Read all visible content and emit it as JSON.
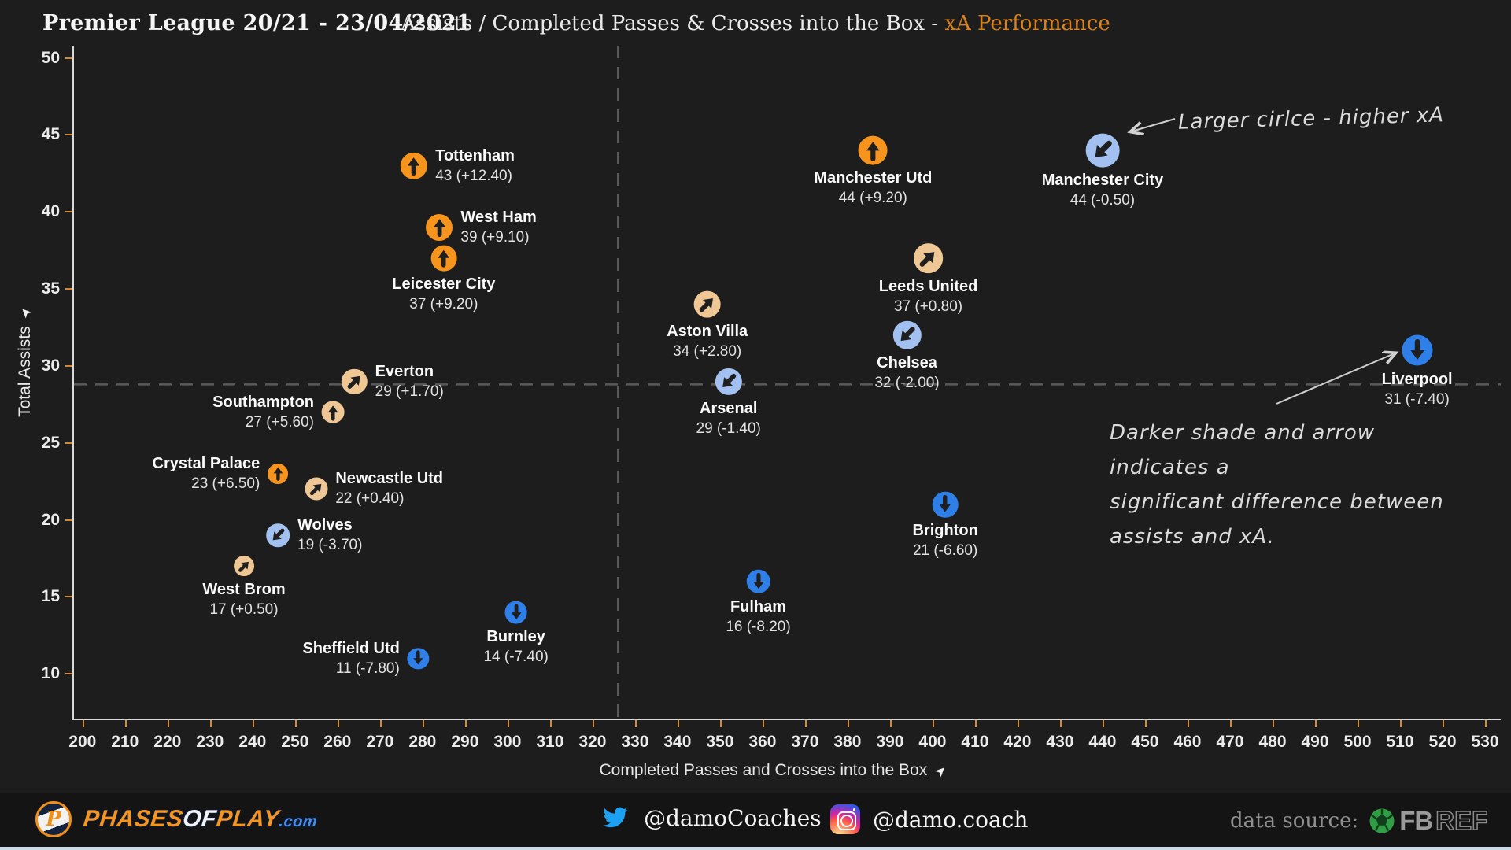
{
  "header": {
    "left_title": "Premier League 20/21 - 23/04/2021",
    "title_main": "Assists / Completed Passes & Crosses into the Box - ",
    "title_accent": "xA Performance"
  },
  "icons": {
    "dart": "➤"
  },
  "chart_data": {
    "type": "scatter",
    "title": "Assists / Completed Passes & Crosses into the Box - xA Performance",
    "xlabel": "Completed Passes and Crosses into the Box",
    "ylabel": "Total Assists",
    "xlim": [
      198,
      533.7
    ],
    "ylim": [
      7.1,
      50.8
    ],
    "x_ticks": [
      200,
      210,
      220,
      230,
      240,
      250,
      260,
      270,
      280,
      290,
      300,
      310,
      320,
      330,
      340,
      350,
      360,
      370,
      380,
      390,
      400,
      410,
      420,
      430,
      440,
      450,
      460,
      470,
      480,
      490,
      500,
      510,
      520,
      530
    ],
    "y_ticks": [
      10,
      15,
      20,
      25,
      30,
      35,
      40,
      45,
      50
    ],
    "grid": false,
    "average_lines": {
      "x_value": 326,
      "y_value": 28.8
    },
    "encoding_notes": {
      "size": "circle size proportional to xA",
      "color_up": "orange = assists above xA",
      "color_down": "blue = assists below xA",
      "strong_shade": "darker shade + straight arrow = significant difference"
    },
    "colors": {
      "orange_strong": "#f7941d",
      "orange_pale": "#efc795",
      "blue_strong": "#2e7fe8",
      "blue_pale": "#a2c1f0",
      "arrow": "#1f1f1f",
      "tick": "#d78b2f",
      "dashed": "#5a5a5a"
    },
    "teams": [
      {
        "name": "Tottenham",
        "passes": 278,
        "assists": 43,
        "xa_diff": 12.4,
        "value_label": "43 (+12.40)",
        "group": "orange",
        "shade": "strong",
        "dir": "up",
        "side": "right"
      },
      {
        "name": "West Ham",
        "passes": 284,
        "assists": 39,
        "xa_diff": 9.1,
        "value_label": "39 (+9.10)",
        "group": "orange",
        "shade": "strong",
        "dir": "up",
        "side": "right"
      },
      {
        "name": "Leicester City",
        "passes": 285,
        "assists": 37,
        "xa_diff": 9.2,
        "value_label": "37 (+9.20)",
        "group": "orange",
        "shade": "strong",
        "dir": "up",
        "side": "below"
      },
      {
        "name": "Everton",
        "passes": 264,
        "assists": 29,
        "xa_diff": 1.7,
        "value_label": "29 (+1.70)",
        "group": "orange",
        "shade": "pale",
        "dir": "upright",
        "side": "right"
      },
      {
        "name": "Southampton",
        "passes": 259,
        "assists": 27,
        "xa_diff": 5.6,
        "value_label": "27 (+5.60)",
        "group": "orange",
        "shade": "pale",
        "dir": "up",
        "side": "left"
      },
      {
        "name": "Crystal Palace",
        "passes": 246,
        "assists": 23,
        "xa_diff": 6.5,
        "value_label": "23 (+6.50)",
        "group": "orange",
        "shade": "strong",
        "dir": "up",
        "side": "left"
      },
      {
        "name": "Newcastle Utd",
        "passes": 255,
        "assists": 22,
        "xa_diff": 0.4,
        "value_label": "22 (+0.40)",
        "group": "orange",
        "shade": "pale",
        "dir": "upright",
        "side": "right"
      },
      {
        "name": "Wolves",
        "passes": 246,
        "assists": 19,
        "xa_diff": -3.7,
        "value_label": "19 (-3.70)",
        "group": "blue",
        "shade": "pale",
        "dir": "downleft",
        "side": "right"
      },
      {
        "name": "West Brom",
        "passes": 238,
        "assists": 17,
        "xa_diff": 0.5,
        "value_label": "17 (+0.50)",
        "group": "orange",
        "shade": "pale",
        "dir": "upright",
        "side": "below"
      },
      {
        "name": "Sheffield Utd",
        "passes": 279,
        "assists": 11,
        "xa_diff": -7.8,
        "value_label": "11 (-7.80)",
        "group": "blue",
        "shade": "strong",
        "dir": "down",
        "side": "left"
      },
      {
        "name": "Burnley",
        "passes": 302,
        "assists": 14,
        "xa_diff": -7.4,
        "value_label": "14 (-7.40)",
        "group": "blue",
        "shade": "strong",
        "dir": "down",
        "side": "below"
      },
      {
        "name": "Fulham",
        "passes": 359,
        "assists": 16,
        "xa_diff": -8.2,
        "value_label": "16 (-8.20)",
        "group": "blue",
        "shade": "strong",
        "dir": "down",
        "side": "below"
      },
      {
        "name": "Arsenal",
        "passes": 352,
        "assists": 29,
        "xa_diff": -1.4,
        "value_label": "29 (-1.40)",
        "group": "blue",
        "shade": "pale",
        "dir": "downleft",
        "side": "below"
      },
      {
        "name": "Aston Villa",
        "passes": 347,
        "assists": 34,
        "xa_diff": 2.8,
        "value_label": "34 (+2.80)",
        "group": "orange",
        "shade": "pale",
        "dir": "upright",
        "side": "below"
      },
      {
        "name": "Chelsea",
        "passes": 394,
        "assists": 32,
        "xa_diff": -2.0,
        "value_label": "32 (-2.00)",
        "group": "blue",
        "shade": "pale",
        "dir": "downleft",
        "side": "below"
      },
      {
        "name": "Leeds United",
        "passes": 399,
        "assists": 37,
        "xa_diff": 0.8,
        "value_label": "37 (+0.80)",
        "group": "orange",
        "shade": "pale",
        "dir": "upright",
        "side": "below"
      },
      {
        "name": "Manchester Utd",
        "passes": 386,
        "assists": 44,
        "xa_diff": 9.2,
        "value_label": "44 (+9.20)",
        "group": "orange",
        "shade": "strong",
        "dir": "up",
        "side": "below"
      },
      {
        "name": "Manchester City",
        "passes": 440,
        "assists": 44,
        "xa_diff": -0.5,
        "value_label": "44 (-0.50)",
        "group": "blue",
        "shade": "pale",
        "dir": "downleft",
        "side": "below"
      },
      {
        "name": "Brighton",
        "passes": 403,
        "assists": 21,
        "xa_diff": -6.6,
        "value_label": "21 (-6.60)",
        "group": "blue",
        "shade": "strong",
        "dir": "down",
        "side": "below"
      },
      {
        "name": "Liverpool",
        "passes": 514,
        "assists": 31,
        "xa_diff": -7.4,
        "value_label": "31 (-7.40)",
        "group": "blue",
        "shade": "strong",
        "dir": "down",
        "side": "below"
      }
    ]
  },
  "annotations": {
    "size_note": "Larger cirlce - higher xA",
    "shade_note_lines": [
      "Darker shade and arrow indicates a",
      "significant difference between",
      "assists and xA."
    ]
  },
  "footer": {
    "brand_phases": "PHASES",
    "brand_of": "OF",
    "brand_play": "PLAY",
    "brand_com": ".com",
    "brand_initial": "P",
    "twitter_handle": "@damoCoaches",
    "instagram_handle": "@damo.coach",
    "data_source_label": "data source:",
    "fbref_fb": "FB",
    "fbref_ref": "REF"
  }
}
